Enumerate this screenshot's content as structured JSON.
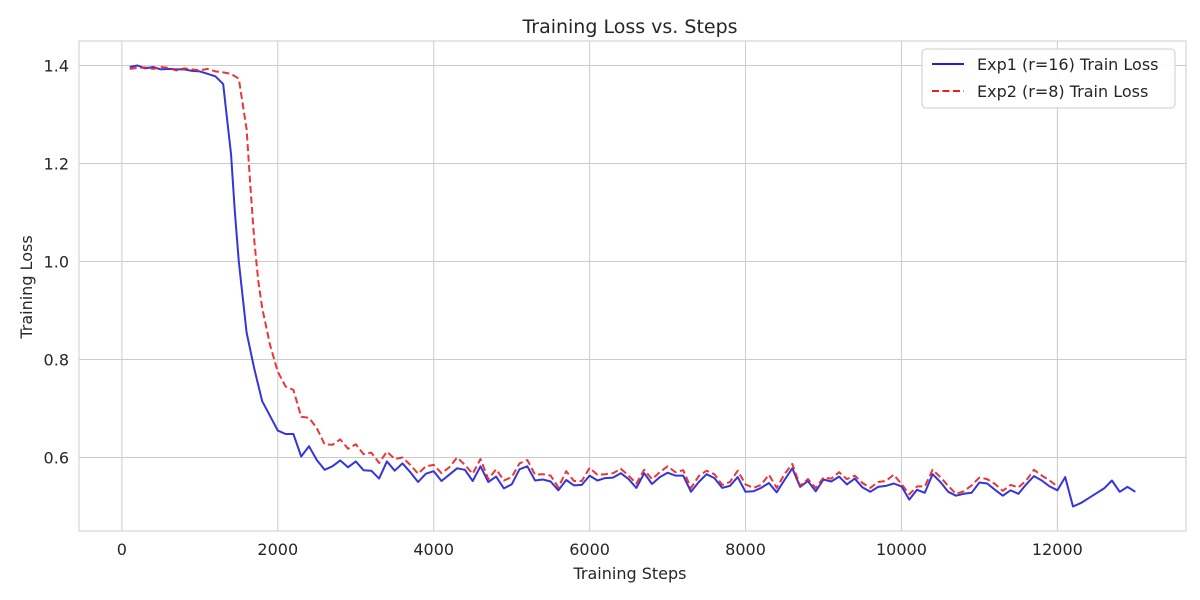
{
  "chart_data": {
    "type": "line",
    "title": "Training Loss vs. Steps",
    "xlabel": "Training Steps",
    "ylabel": "Training Loss",
    "xlim": [
      -550,
      13650
    ],
    "ylim": [
      0.45,
      1.45
    ],
    "xticks": [
      0,
      2000,
      4000,
      6000,
      8000,
      10000,
      12000
    ],
    "yticks": [
      0.6,
      0.8,
      1.0,
      1.2,
      1.4
    ],
    "ytick_labels": [
      "0.6",
      "0.8",
      "1.0",
      "1.2",
      "1.4"
    ],
    "grid": true,
    "legend_position": "top-right",
    "series": [
      {
        "name": "Exp1 (r=16) Train Loss",
        "color": "#1f1fd6",
        "linestyle": "solid",
        "x": [
          100,
          200,
          300,
          400,
          500,
          600,
          700,
          800,
          900,
          1000,
          1100,
          1200,
          1300,
          1350,
          1400,
          1450,
          1500,
          1600,
          1700,
          1800,
          1900,
          2000,
          2100,
          2200,
          2300,
          2400,
          2500,
          2600,
          2700,
          2800,
          2900,
          3000,
          3100,
          3200,
          3300,
          3400,
          3500,
          3600,
          3700,
          3800,
          3900,
          4000,
          4100,
          4200,
          4300,
          4400,
          4500,
          4600,
          4700,
          4800,
          4900,
          5000,
          5100,
          5200,
          5300,
          5400,
          5500,
          5600,
          5700,
          5800,
          5900,
          6000,
          6100,
          6200,
          6300,
          6400,
          6500,
          6600,
          6700,
          6800,
          6900,
          7000,
          7100,
          7200,
          7300,
          7400,
          7500,
          7600,
          7700,
          7800,
          7900,
          8000,
          8100,
          8200,
          8300,
          8400,
          8500,
          8600,
          8700,
          8800,
          8900,
          9000,
          9100,
          9200,
          9300,
          9400,
          9500,
          9600,
          9700,
          9800,
          9900,
          10000,
          10100,
          10200,
          10300,
          10400,
          10500,
          10600,
          10700,
          10800,
          10900,
          11000,
          11100,
          11200,
          11300,
          11400,
          11500,
          11600,
          11700,
          11800,
          11900,
          12000,
          12100,
          12200,
          12300,
          12400,
          12500,
          12600,
          12700,
          12800,
          12900,
          13000
        ],
        "y": [
          1.397,
          1.4,
          1.394,
          1.397,
          1.392,
          1.393,
          1.392,
          1.392,
          1.389,
          1.388,
          1.383,
          1.378,
          1.362,
          1.29,
          1.22,
          1.1,
          1.0,
          0.855,
          0.78,
          0.715,
          0.685,
          0.655,
          0.648,
          0.648,
          0.602,
          0.623,
          0.595,
          0.575,
          0.582,
          0.594,
          0.58,
          0.592,
          0.574,
          0.573,
          0.557,
          0.592,
          0.573,
          0.588,
          0.57,
          0.55,
          0.567,
          0.572,
          0.552,
          0.565,
          0.578,
          0.575,
          0.552,
          0.582,
          0.55,
          0.561,
          0.537,
          0.545,
          0.576,
          0.582,
          0.553,
          0.555,
          0.551,
          0.533,
          0.554,
          0.543,
          0.544,
          0.563,
          0.553,
          0.558,
          0.559,
          0.568,
          0.556,
          0.538,
          0.568,
          0.546,
          0.56,
          0.569,
          0.563,
          0.563,
          0.53,
          0.55,
          0.566,
          0.558,
          0.538,
          0.542,
          0.56,
          0.53,
          0.531,
          0.538,
          0.548,
          0.529,
          0.554,
          0.578,
          0.54,
          0.552,
          0.531,
          0.555,
          0.551,
          0.561,
          0.545,
          0.557,
          0.539,
          0.53,
          0.54,
          0.542,
          0.547,
          0.541,
          0.514,
          0.534,
          0.528,
          0.566,
          0.55,
          0.53,
          0.522,
          0.526,
          0.528,
          0.549,
          0.547,
          0.534,
          0.522,
          0.533,
          0.526,
          0.545,
          0.562,
          0.553,
          0.541,
          0.533,
          0.56,
          0.5,
          0.507,
          0.517,
          0.527,
          0.537,
          0.553,
          0.53,
          0.54,
          0.53
        ]
      },
      {
        "name": "Exp2 (r=8) Train Loss",
        "color": "#e82020",
        "linestyle": "dashed",
        "x": [
          100,
          200,
          300,
          400,
          500,
          600,
          700,
          800,
          900,
          1000,
          1100,
          1200,
          1300,
          1400,
          1500,
          1600,
          1650,
          1700,
          1750,
          1800,
          1900,
          2000,
          2100,
          2200,
          2300,
          2400,
          2500,
          2600,
          2700,
          2800,
          2900,
          3000,
          3100,
          3200,
          3300,
          3400,
          3500,
          3600,
          3700,
          3800,
          3900,
          4000,
          4100,
          4200,
          4300,
          4400,
          4500,
          4600,
          4700,
          4800,
          4900,
          5000,
          5100,
          5200,
          5300,
          5400,
          5500,
          5600,
          5700,
          5800,
          5900,
          6000,
          6100,
          6200,
          6300,
          6400,
          6500,
          6600,
          6700,
          6800,
          6900,
          7000,
          7100,
          7200,
          7300,
          7400,
          7500,
          7600,
          7700,
          7800,
          7900,
          8000,
          8100,
          8200,
          8300,
          8400,
          8500,
          8600,
          8700,
          8800,
          8900,
          9000,
          9100,
          9200,
          9300,
          9400,
          9500,
          9600,
          9700,
          9800,
          9900,
          10000,
          10100,
          10200,
          10300,
          10400,
          10500,
          10600,
          10700,
          10800,
          10900,
          11000,
          11100,
          11200,
          11300,
          11400,
          11500,
          11600,
          11700,
          11800,
          11900,
          12000
        ],
        "y": [
          1.393,
          1.395,
          1.396,
          1.393,
          1.397,
          1.395,
          1.39,
          1.394,
          1.392,
          1.39,
          1.393,
          1.388,
          1.386,
          1.383,
          1.373,
          1.27,
          1.15,
          1.04,
          0.96,
          0.905,
          0.83,
          0.775,
          0.745,
          0.738,
          0.683,
          0.681,
          0.66,
          0.627,
          0.626,
          0.637,
          0.618,
          0.627,
          0.607,
          0.61,
          0.589,
          0.612,
          0.597,
          0.6,
          0.585,
          0.567,
          0.582,
          0.585,
          0.568,
          0.58,
          0.6,
          0.585,
          0.567,
          0.597,
          0.556,
          0.576,
          0.553,
          0.56,
          0.588,
          0.595,
          0.565,
          0.566,
          0.563,
          0.539,
          0.572,
          0.552,
          0.552,
          0.579,
          0.565,
          0.566,
          0.568,
          0.577,
          0.563,
          0.547,
          0.575,
          0.556,
          0.57,
          0.582,
          0.57,
          0.574,
          0.538,
          0.562,
          0.573,
          0.566,
          0.544,
          0.55,
          0.573,
          0.545,
          0.538,
          0.544,
          0.565,
          0.538,
          0.566,
          0.587,
          0.542,
          0.556,
          0.538,
          0.559,
          0.557,
          0.57,
          0.556,
          0.563,
          0.548,
          0.538,
          0.55,
          0.552,
          0.565,
          0.546,
          0.525,
          0.541,
          0.541,
          0.575,
          0.56,
          0.542,
          0.526,
          0.531,
          0.543,
          0.559,
          0.556,
          0.546,
          0.532,
          0.544,
          0.539,
          0.553,
          0.575,
          0.563,
          0.553,
          0.541
        ]
      }
    ]
  }
}
